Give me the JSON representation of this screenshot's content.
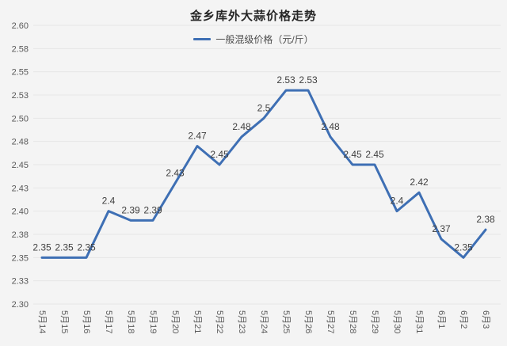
{
  "chart_data": {
    "type": "line",
    "title": "金乡库外大蒜价格走势",
    "legend_label": "一般混级价格（元/斤）",
    "legend_position": "top",
    "categories": [
      "5月14",
      "5月15",
      "5月16",
      "5月17",
      "5月18",
      "5月19",
      "5月20",
      "5月21",
      "5月22",
      "5月23",
      "5月24",
      "5月25",
      "5月26",
      "5月27",
      "5月28",
      "5月29",
      "5月30",
      "5月31",
      "6月1",
      "6月2",
      "6月3"
    ],
    "series": [
      {
        "name": "一般混级价格（元/斤）",
        "values": [
          2.35,
          2.35,
          2.35,
          2.4,
          2.39,
          2.39,
          2.43,
          2.47,
          2.45,
          2.48,
          2.5,
          2.53,
          2.53,
          2.48,
          2.45,
          2.45,
          2.4,
          2.42,
          2.37,
          2.35,
          2.38
        ],
        "value_labels": [
          "2.35",
          "2.35",
          "2.35",
          "2.4",
          "2.39",
          "2.39",
          "2.43",
          "2.47",
          "2.45",
          "2.48",
          "2.5",
          "2.53",
          "2.53",
          "2.48",
          "2.45",
          "2.45",
          "2.4",
          "2.42",
          "2.37",
          "2.35",
          "2.38"
        ]
      }
    ],
    "xlabel": "",
    "ylabel": "",
    "ylim": [
      2.3,
      2.6
    ],
    "y_tick_step": 0.025,
    "y_tick_labels": [
      "2.60",
      "2.58",
      "2.55",
      "2.53",
      "2.50",
      "2.48",
      "2.45",
      "2.43",
      "2.40",
      "2.38",
      "2.35",
      "2.33",
      "2.30"
    ],
    "grid": "horizontal",
    "colors": {
      "line": "#3E6FB4",
      "data_label": "#404040",
      "axis_label": "#595959",
      "gridline": "#e6e6e6",
      "background": "#f4f4f4",
      "title": "#262626"
    }
  }
}
